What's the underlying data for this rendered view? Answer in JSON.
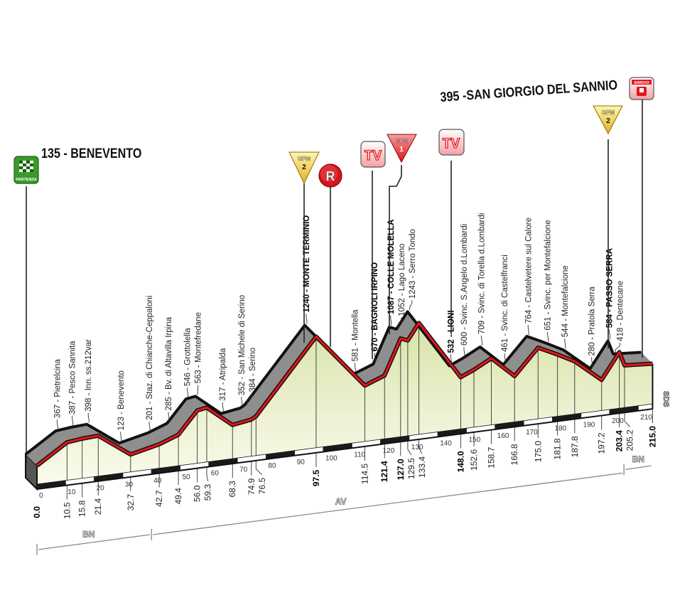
{
  "chart_data": {
    "type": "area",
    "title": "",
    "xlabel": "",
    "ylabel": "",
    "x_unit": "km",
    "xlim": [
      0,
      215
    ],
    "x_ticks": [
      0,
      10,
      20,
      30,
      40,
      50,
      60,
      70,
      80,
      90,
      100,
      110,
      120,
      130,
      140,
      150,
      160,
      170,
      180,
      190,
      200,
      210
    ],
    "start": {
      "label": "135 - BENEVENTO",
      "km": 0.0,
      "elev": 135
    },
    "finish": {
      "label": "395 -SAN GIORGIO DEL SANNIO",
      "km": 215.0,
      "elev": 395
    },
    "points": [
      {
        "km": 0.0,
        "km_label": "0.0",
        "elev": 135,
        "label": "",
        "bold": true
      },
      {
        "km": 10.5,
        "km_label": "10.5",
        "elev": 367,
        "label": "367 - Pietrelcina",
        "bold": false
      },
      {
        "km": 15.8,
        "km_label": "15.8",
        "elev": 387,
        "label": "387 - Pesco Sannita",
        "bold": false
      },
      {
        "km": 21.4,
        "km_label": "21.4",
        "elev": 398,
        "label": "398 - Inn. ss.212var",
        "bold": false
      },
      {
        "km": 32.7,
        "km_label": "32.7",
        "elev": 123,
        "label": "123 - Benevento",
        "bold": false
      },
      {
        "km": 42.7,
        "km_label": "42.7",
        "elev": 201,
        "label": "201 - Staz. di Chianche-Ceppaloni",
        "bold": false
      },
      {
        "km": 49.4,
        "km_label": "49.4",
        "elev": 285,
        "label": "285 - Bv. di Altavilla Irpina",
        "bold": false
      },
      {
        "km": 56.0,
        "km_label": "56.0",
        "elev": 546,
        "label": "546 - Grottolella",
        "bold": false
      },
      {
        "km": 59.3,
        "km_label": "59.3",
        "elev": 563,
        "label": "563 - Montefredane",
        "bold": false
      },
      {
        "km": 68.3,
        "km_label": "68.3",
        "elev": 317,
        "label": "317 - Atripalda",
        "bold": false
      },
      {
        "km": 74.9,
        "km_label": "74.9",
        "elev": 352,
        "label": "352 - San Michele di Serino",
        "bold": false
      },
      {
        "km": 76.5,
        "km_label": "76.5",
        "elev": 384,
        "label": "384 - Serino",
        "bold": false
      },
      {
        "km": 97.5,
        "km_label": "97.5",
        "elev": 1240,
        "label": "1240 - MONTE TERMINIO",
        "bold": true
      },
      {
        "km": 114.5,
        "km_label": "114.5",
        "elev": 581,
        "label": "581 - Montella",
        "bold": false
      },
      {
        "km": 121.4,
        "km_label": "121.4",
        "elev": 670,
        "label": "670 - BAGNOLI IRPINO",
        "bold": true
      },
      {
        "km": 127.0,
        "km_label": "127.0",
        "elev": 1087,
        "label": "1087 - COLLE MOLELLA",
        "bold": true
      },
      {
        "km": 129.5,
        "km_label": "129.5",
        "elev": 1052,
        "label": "1052 - Lago Laceno",
        "bold": false
      },
      {
        "km": 133.4,
        "km_label": "133.4",
        "elev": 1243,
        "label": "1243 - Serro Tondo",
        "bold": false
      },
      {
        "km": 148.0,
        "km_label": "148.0",
        "elev": 532,
        "label": "532 - LIONI",
        "bold": true
      },
      {
        "km": 152.6,
        "km_label": "152.6",
        "elev": 600,
        "label": "600 - Svinc. S.Angelo d.Lombardi",
        "bold": false
      },
      {
        "km": 158.7,
        "km_label": "158.7",
        "elev": 709,
        "label": "709 - Svinc. di Torella d.Lombardi",
        "bold": false
      },
      {
        "km": 166.8,
        "km_label": "166.8",
        "elev": 461,
        "label": "461 - Svinc. di Castelfranci",
        "bold": false
      },
      {
        "km": 175.0,
        "km_label": "175.0",
        "elev": 764,
        "label": "764 - Castelvetere sul Calore",
        "bold": false
      },
      {
        "km": 181.8,
        "km_label": "181.8",
        "elev": 651,
        "label": "651 - Svinc. per Montefalcione",
        "bold": false
      },
      {
        "km": 187.8,
        "km_label": "187.8",
        "elev": 544,
        "label": "544 - Montefalcione",
        "bold": false
      },
      {
        "km": 197.2,
        "km_label": "197.2",
        "elev": 280,
        "label": "280 - Pratola Serra",
        "bold": false
      },
      {
        "km": 203.4,
        "km_label": "203.4",
        "elev": 584,
        "label": "584 - PASSO SERRA",
        "bold": true
      },
      {
        "km": 205.2,
        "km_label": "205.2",
        "elev": 418,
        "label": "418 - Dentecane",
        "bold": false
      },
      {
        "km": 215.0,
        "km_label": "215.0",
        "elev": 395,
        "label": "",
        "bold": true
      }
    ],
    "provinces": [
      {
        "code": "BN",
        "from_km": 0,
        "to_km": 40
      },
      {
        "code": "AV",
        "from_km": 40,
        "to_km": 205
      },
      {
        "code": "BN",
        "from_km": 205,
        "to_km": 215
      }
    ],
    "end_province_tag": "SDS",
    "markers": [
      {
        "type": "partenza",
        "text": "PARTENZA",
        "km": 0.0
      },
      {
        "type": "gpm",
        "category": "2",
        "text": "GPM",
        "km": 97.5
      },
      {
        "type": "sprint",
        "text": "R",
        "km": 100
      },
      {
        "type": "tv",
        "text": "TV",
        "km": 114.5
      },
      {
        "type": "gpm",
        "category": "1",
        "text": "GPM",
        "km": 127.0
      },
      {
        "type": "tv",
        "text": "TV",
        "km": 148.0
      },
      {
        "type": "gpm",
        "category": "2",
        "text": "GPM",
        "km": 203.4
      },
      {
        "type": "arrivo",
        "text": "ARRIVO",
        "km": 215.0
      }
    ],
    "colors": {
      "profile_line": "#e3161b",
      "ridge": "#8e8e8e",
      "fill_top": "#dfe8b6",
      "fill_bottom": "#fbfbef",
      "gpm": "#f2d23a",
      "gpm1": "#e3161b",
      "partenza": "#4aa02c"
    }
  }
}
